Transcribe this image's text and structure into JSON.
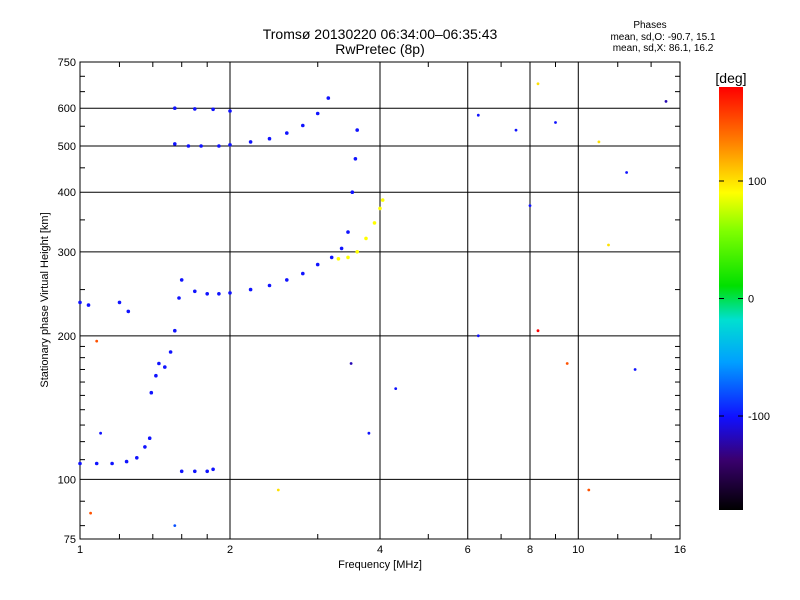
{
  "header": {
    "title": "Tromsø 20130220 06:34:00–06:35:43",
    "subtitle": "RwPretec (8p)"
  },
  "phase_info": {
    "title": "Phases",
    "o_line": "mean, sd,O: -90.7, 15.1",
    "x_line": "mean, sd,X:  86.1, 16.2"
  },
  "colorbar": {
    "unit": "[deg]",
    "range": [
      -180,
      180
    ],
    "ticks": [
      {
        "value": 100,
        "label": "100"
      },
      {
        "value": 0,
        "label": "0"
      },
      {
        "value": -100,
        "label": "-100"
      }
    ]
  },
  "chart_data": {
    "type": "scatter",
    "title": "Tromsø 20130220 06:34:00–06:35:43",
    "subtitle": "RwPretec (8p)",
    "xlabel": "Frequency [MHz]",
    "ylabel": "Stationary phase Virtual Height [km]",
    "xscale": "log",
    "yscale": "log",
    "xlim": [
      1,
      16
    ],
    "ylim": [
      75,
      750
    ],
    "xticks": [
      {
        "value": 1,
        "label": "1"
      },
      {
        "value": 2,
        "label": "2"
      },
      {
        "value": 4,
        "label": "4"
      },
      {
        "value": 6,
        "label": "6"
      },
      {
        "value": 8,
        "label": "8"
      },
      {
        "value": 10,
        "label": "10"
      },
      {
        "value": 16,
        "label": "16"
      }
    ],
    "yticks": [
      {
        "value": 75,
        "label": "75"
      },
      {
        "value": 100,
        "label": "100"
      },
      {
        "value": 200,
        "label": "200"
      },
      {
        "value": 300,
        "label": "300"
      },
      {
        "value": 400,
        "label": "400"
      },
      {
        "value": 500,
        "label": "500"
      },
      {
        "value": 600,
        "label": "600"
      },
      {
        "value": 750,
        "label": "750"
      }
    ],
    "grid": true,
    "color_by": "phase [deg]",
    "traces": [
      {
        "mode": "O",
        "phase": -100,
        "points": [
          [
            1.0,
            108
          ],
          [
            1.08,
            108
          ],
          [
            1.16,
            108
          ],
          [
            1.24,
            109
          ],
          [
            1.3,
            111
          ],
          [
            1.35,
            117
          ],
          [
            1.38,
            122
          ],
          [
            1.39,
            152
          ],
          [
            1.42,
            165
          ],
          [
            1.44,
            175
          ],
          [
            1.48,
            172
          ],
          [
            1.52,
            185
          ],
          [
            1.55,
            205
          ],
          [
            1.58,
            240
          ],
          [
            1.6,
            262
          ],
          [
            1.7,
            248
          ],
          [
            1.8,
            245
          ],
          [
            1.9,
            245
          ],
          [
            2.0,
            246
          ],
          [
            2.2,
            250
          ],
          [
            2.4,
            255
          ],
          [
            2.6,
            262
          ],
          [
            2.8,
            270
          ],
          [
            3.0,
            282
          ],
          [
            3.2,
            292
          ],
          [
            3.35,
            305
          ],
          [
            3.45,
            330
          ],
          [
            3.52,
            400
          ],
          [
            3.57,
            470
          ],
          [
            3.6,
            540
          ]
        ]
      },
      {
        "mode": "O2",
        "phase": -100,
        "points": [
          [
            1.55,
            505
          ],
          [
            1.65,
            500
          ],
          [
            1.75,
            500
          ],
          [
            1.9,
            500
          ],
          [
            2.0,
            503
          ],
          [
            2.2,
            510
          ],
          [
            2.4,
            518
          ],
          [
            2.6,
            532
          ],
          [
            2.8,
            552
          ],
          [
            3.0,
            585
          ],
          [
            3.15,
            630
          ]
        ]
      },
      {
        "mode": "O3",
        "phase": -100,
        "points": [
          [
            1.55,
            600
          ],
          [
            1.7,
            598
          ],
          [
            1.85,
            597
          ],
          [
            2.0,
            592
          ]
        ]
      },
      {
        "mode": "X",
        "phase": 90,
        "points": [
          [
            3.3,
            290
          ],
          [
            3.45,
            292
          ],
          [
            3.6,
            300
          ],
          [
            3.75,
            320
          ],
          [
            3.9,
            345
          ],
          [
            4.0,
            370
          ],
          [
            4.05,
            385
          ]
        ]
      },
      {
        "mode": "E",
        "phase": -100,
        "points": [
          [
            1.0,
            235
          ],
          [
            1.04,
            232
          ],
          [
            1.2,
            235
          ],
          [
            1.25,
            225
          ]
        ]
      },
      {
        "mode": "Es",
        "phase": -100,
        "points": [
          [
            1.6,
            104
          ],
          [
            1.7,
            104
          ],
          [
            1.8,
            104
          ],
          [
            1.85,
            105
          ]
        ]
      }
    ],
    "scatter_points": [
      {
        "x": 6.3,
        "y": 580,
        "phase": -100
      },
      {
        "x": 6.3,
        "y": 200,
        "phase": -100
      },
      {
        "x": 7.5,
        "y": 540,
        "phase": -100
      },
      {
        "x": 8.0,
        "y": 375,
        "phase": -100
      },
      {
        "x": 8.3,
        "y": 675,
        "phase": 100
      },
      {
        "x": 9.0,
        "y": 560,
        "phase": -100
      },
      {
        "x": 11.0,
        "y": 510,
        "phase": 100
      },
      {
        "x": 11.5,
        "y": 310,
        "phase": 100
      },
      {
        "x": 12.5,
        "y": 440,
        "phase": -100
      },
      {
        "x": 15.0,
        "y": 620,
        "phase": -120
      },
      {
        "x": 10.5,
        "y": 95,
        "phase": 150
      },
      {
        "x": 3.8,
        "y": 125,
        "phase": -100
      },
      {
        "x": 4.3,
        "y": 155,
        "phase": -100
      },
      {
        "x": 3.5,
        "y": 175,
        "phase": -120
      },
      {
        "x": 2.5,
        "y": 95,
        "phase": 100
      },
      {
        "x": 1.55,
        "y": 80,
        "phase": -80
      },
      {
        "x": 1.05,
        "y": 85,
        "phase": 150
      },
      {
        "x": 1.08,
        "y": 195,
        "phase": 150
      },
      {
        "x": 1.1,
        "y": 125,
        "phase": -100
      },
      {
        "x": 13.0,
        "y": 170,
        "phase": -100
      },
      {
        "x": 9.5,
        "y": 175,
        "phase": 150
      },
      {
        "x": 8.3,
        "y": 205,
        "phase": 180
      }
    ]
  }
}
